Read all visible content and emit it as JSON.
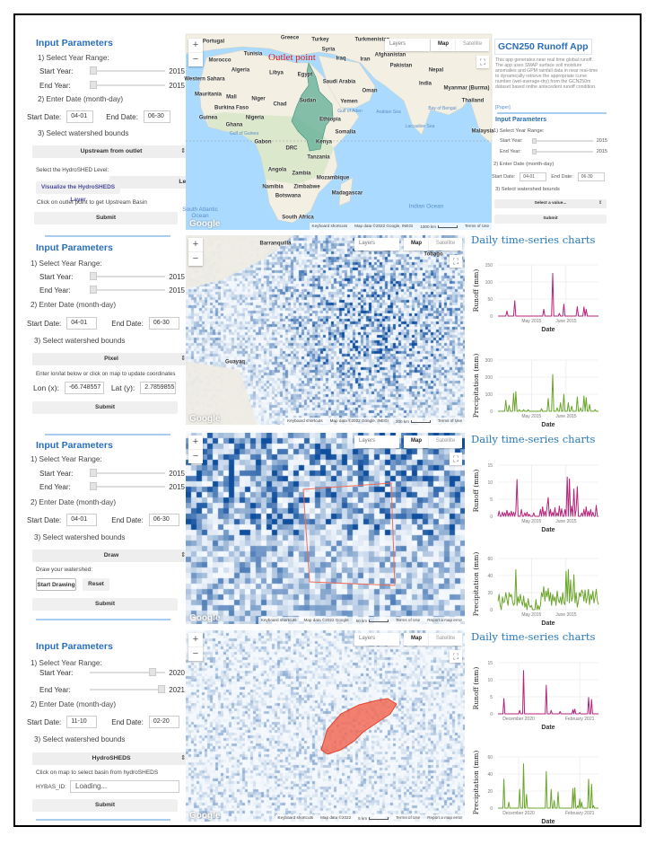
{
  "common": {
    "input_parameters": "Input Parameters",
    "year_range": "1) Select Year Range:",
    "start_year": "Start Year:",
    "end_year": "End Year:",
    "enter_date": "2) Enter Date (month-day)",
    "start_date": "Start Date:",
    "end_date": "End Date:",
    "watershed": "3) Select watershed bounds",
    "submit": "Submit",
    "charts_title": "Daily time-series charts",
    "date_label": "Date",
    "runoff_label": "Runoff (mm)",
    "precip_label": "Precipitation (mm)"
  },
  "map_controls": {
    "zoom_in": "+",
    "zoom_out": "−",
    "layers": "Layers",
    "map": "Map",
    "satellite": "Satellite",
    "fullscreen": "⛶",
    "google": "Google",
    "shortcuts": "Keyboard shortcuts",
    "terms": "Terms of Use",
    "report": "Report a map error"
  },
  "panel1": {
    "start_year": "2015",
    "end_year": "2015",
    "start_date": "04-01",
    "end_date": "06-30",
    "bounds": "Upstream from outlet",
    "level_label": "Select the HydroSHED Level:",
    "level": "Level8",
    "visualize": "Visualize the HydroSHEDS Layer",
    "hint": "Click on outlet point to get Upstream Basin",
    "map_data": "Map data ©2022 Google, INEGI",
    "scale": "1000 km",
    "outlet_label": "Outlet point",
    "labels": [
      "Portugal",
      "Greece",
      "Turkey",
      "Turkmenistan",
      "Morocco",
      "Tunisia",
      "Syria",
      "Iraq",
      "Iran",
      "Afghanistan",
      "Pakistan",
      "Algeria",
      "Libya",
      "Egypt",
      "Nepal",
      "Western Sahara",
      "Saudi Arabia",
      "India",
      "Oman",
      "Myanmar (Burma)",
      "Mauritania",
      "Mali",
      "Niger",
      "Chad",
      "Sudan",
      "Yemen",
      "Thailand",
      "Burkina Faso",
      "Guinea",
      "Nigeria",
      "Ethiopia",
      "Ghana",
      "Somalia",
      "Gabon",
      "Kenya",
      "DRC",
      "Tanzania",
      "Angola",
      "Zambia",
      "Mozambique",
      "Namibia",
      "Zimbabwe",
      "Botswana",
      "Madagascar",
      "South Africa",
      "Malaysia"
    ],
    "water_labels": [
      "Gulf of Guinea",
      "Gulf of Aden",
      "Arabian Sea",
      "Bay of Bengal",
      "Laccadive Sea",
      "Indian Ocean",
      "South Atlantic Ocean"
    ]
  },
  "app": {
    "title": "GCN250 Runoff App",
    "description": "This app generates near real time global runoff. The app uses SMAP surface soil moisture anomalies and GPM rainfall data in near real-time to dynamically retrieve the appropriate curve number (wet-average-dry) from the GCN250m dataset based onthe antecedent runoff condition.",
    "paper_link": "[Paper]",
    "start_year": "2015",
    "end_year": "2015",
    "start_date": "04-01",
    "end_date": "06-30",
    "bounds": "Select a value..."
  },
  "panel2": {
    "start_year": "2015",
    "end_year": "2015",
    "start_date": "04-01",
    "end_date": "06-30",
    "bounds": "Pixel",
    "hint": "Enter lon/lat below or click on map to update coordinates",
    "lon_label": "Lon (x):",
    "lon": "-66.748557",
    "lat_label": "Lat (y):",
    "lat": "2.7859855",
    "map_data": "Map data ©2022 Google, INEGI",
    "scale": "200 km",
    "labels": [
      "Barranquilla",
      "Guayaq",
      "Tobago"
    ]
  },
  "panel3": {
    "start_year": "2015",
    "end_year": "2015",
    "start_date": "04-01",
    "end_date": "06-30",
    "bounds": "Draw",
    "draw_label": "Draw your watershed:",
    "start_drawing": "Start Drawing",
    "reset": "Reset",
    "map_data": "Map data ©2022 Google",
    "scale": "50 km"
  },
  "panel4": {
    "start_year": "2020",
    "end_year": "2021",
    "start_date": "11-10",
    "end_date": "02-20",
    "bounds": "HydroSHEDS",
    "hint": "Click on map to select basin from hydroSHEDS",
    "hybas_label": "HYBAS_ID:",
    "hybas_placeholder": "Loading...",
    "map_data": "Map data ©2022",
    "scale": "5 km"
  },
  "colors": {
    "accent": "#2a6ebb",
    "runoff": "#b5247a",
    "precip": "#6aa52a",
    "basin": "#5fae95",
    "drawn": "#f26b57"
  },
  "chart_data": [
    {
      "type": "line",
      "panel": 2,
      "ylabel": "Runoff (mm)",
      "xlabel": "Date",
      "start": "2015-04-01",
      "end": "2015-06-30",
      "ylim": [
        0,
        150
      ],
      "yticks": [
        0,
        50,
        100,
        150
      ],
      "xticks": [
        {
          "date": "2015-05-01",
          "label": "May 2015"
        },
        {
          "date": "2015-06-01",
          "label": "June 2015"
        }
      ],
      "grid": true,
      "points": [
        [
          "2015-04-09",
          15
        ],
        [
          "2015-04-16",
          45
        ],
        [
          "2015-05-12",
          20
        ],
        [
          "2015-05-20",
          125
        ],
        [
          "2015-05-26",
          8
        ],
        [
          "2015-05-30",
          35
        ],
        [
          "2015-06-11",
          28
        ],
        [
          "2015-06-17",
          27
        ],
        [
          "2015-06-19",
          20
        ]
      ]
    },
    {
      "type": "line",
      "panel": 2,
      "ylabel": "Precipitation (mm)",
      "xlabel": "Date",
      "start": "2015-04-01",
      "end": "2015-06-30",
      "ylim": [
        0,
        300
      ],
      "yticks": [
        0,
        100,
        200,
        300
      ],
      "xticks": [
        {
          "date": "2015-05-01",
          "label": "May 2015"
        },
        {
          "date": "2015-06-01",
          "label": "June 2015"
        }
      ],
      "grid": true,
      "points": [
        [
          "2015-04-08",
          65
        ],
        [
          "2015-04-11",
          35
        ],
        [
          "2015-04-15",
          105
        ],
        [
          "2015-04-17",
          115
        ],
        [
          "2015-04-20",
          10
        ],
        [
          "2015-04-24",
          10
        ],
        [
          "2015-04-28",
          10
        ],
        [
          "2015-05-10",
          15
        ],
        [
          "2015-05-16",
          75
        ],
        [
          "2015-05-20",
          215
        ],
        [
          "2015-05-24",
          20
        ],
        [
          "2015-05-27",
          50
        ],
        [
          "2015-05-30",
          100
        ],
        [
          "2015-06-03",
          50
        ],
        [
          "2015-06-06",
          30
        ],
        [
          "2015-06-11",
          85
        ],
        [
          "2015-06-14",
          20
        ],
        [
          "2015-06-17",
          90
        ],
        [
          "2015-06-19",
          80
        ],
        [
          "2015-06-22",
          40
        ],
        [
          "2015-06-27",
          10
        ]
      ]
    },
    {
      "type": "line",
      "panel": 3,
      "ylabel": "Runoff (mm)",
      "xlabel": "Date",
      "start": "2015-04-01",
      "end": "2015-06-30",
      "ylim": [
        0,
        15
      ],
      "yticks": [
        0,
        5,
        10,
        15
      ],
      "xticks": [
        {
          "date": "2015-05-01",
          "label": "May 2015"
        },
        {
          "date": "2015-06-01",
          "label": "June 2015"
        }
      ],
      "grid": true,
      "points": [
        [
          "2015-04-02",
          1.5
        ],
        [
          "2015-04-05",
          1.2
        ],
        [
          "2015-04-07",
          1
        ],
        [
          "2015-04-09",
          1.8
        ],
        [
          "2015-04-11",
          1
        ],
        [
          "2015-04-13",
          1.5
        ],
        [
          "2015-04-15",
          1.2
        ],
        [
          "2015-04-17",
          1.5
        ],
        [
          "2015-04-18",
          10.8
        ],
        [
          "2015-04-22",
          2
        ],
        [
          "2015-04-25",
          1
        ],
        [
          "2015-04-27",
          1.2
        ],
        [
          "2015-04-29",
          0.6
        ],
        [
          "2015-05-03",
          1
        ],
        [
          "2015-05-09",
          2
        ],
        [
          "2015-05-11",
          2.8
        ],
        [
          "2015-05-13",
          1.5
        ],
        [
          "2015-05-15",
          3
        ],
        [
          "2015-05-16",
          5.5
        ],
        [
          "2015-05-18",
          2
        ],
        [
          "2015-05-20",
          1.2
        ],
        [
          "2015-05-22",
          2.5
        ],
        [
          "2015-05-24",
          1
        ],
        [
          "2015-05-26",
          3
        ],
        [
          "2015-05-28",
          2.2
        ],
        [
          "2015-05-31",
          2
        ],
        [
          "2015-06-02",
          11.5
        ],
        [
          "2015-06-04",
          11
        ],
        [
          "2015-06-06",
          3
        ],
        [
          "2015-06-08",
          8
        ],
        [
          "2015-06-10",
          2
        ],
        [
          "2015-06-11",
          8.7
        ],
        [
          "2015-06-15",
          1
        ],
        [
          "2015-06-17",
          2
        ],
        [
          "2015-06-19",
          2.8
        ],
        [
          "2015-06-21",
          1.5
        ],
        [
          "2015-06-23",
          2
        ],
        [
          "2015-06-25",
          1.2
        ],
        [
          "2015-06-28",
          3.2
        ]
      ]
    },
    {
      "type": "line",
      "panel": 3,
      "ylabel": "Precipitation (mm)",
      "xlabel": "Date",
      "start": "2015-04-01",
      "end": "2015-06-30",
      "ylim": [
        0,
        60
      ],
      "yticks": [
        0,
        20,
        40,
        60
      ],
      "xticks": [
        {
          "date": "2015-05-01",
          "label": "May 2015"
        },
        {
          "date": "2015-06-01",
          "label": "June 2015"
        }
      ],
      "grid": true,
      "points": [
        [
          "2015-04-01",
          10
        ],
        [
          "2015-04-02",
          18
        ],
        [
          "2015-04-03",
          5
        ],
        [
          "2015-04-05",
          15
        ],
        [
          "2015-04-06",
          8
        ],
        [
          "2015-04-07",
          10
        ],
        [
          "2015-04-08",
          20
        ],
        [
          "2015-04-09",
          12
        ],
        [
          "2015-04-10",
          5
        ],
        [
          "2015-04-11",
          20
        ],
        [
          "2015-04-12",
          15
        ],
        [
          "2015-04-13",
          18
        ],
        [
          "2015-04-14",
          10
        ],
        [
          "2015-04-15",
          5
        ],
        [
          "2015-04-16",
          8
        ],
        [
          "2015-04-17",
          47
        ],
        [
          "2015-04-18",
          5
        ],
        [
          "2015-04-19",
          15
        ],
        [
          "2015-04-20",
          8
        ],
        [
          "2015-04-21",
          18
        ],
        [
          "2015-04-22",
          10
        ],
        [
          "2015-04-23",
          5
        ],
        [
          "2015-04-24",
          16
        ],
        [
          "2015-04-25",
          3
        ],
        [
          "2015-04-26",
          8
        ],
        [
          "2015-04-28",
          13
        ],
        [
          "2015-04-29",
          5
        ],
        [
          "2015-04-30",
          3
        ],
        [
          "2015-05-01",
          5
        ],
        [
          "2015-05-05",
          12
        ],
        [
          "2015-05-07",
          5
        ],
        [
          "2015-05-09",
          5
        ],
        [
          "2015-05-10",
          20
        ],
        [
          "2015-05-11",
          15
        ],
        [
          "2015-05-12",
          27
        ],
        [
          "2015-05-13",
          10
        ],
        [
          "2015-05-14",
          22
        ],
        [
          "2015-05-15",
          15
        ],
        [
          "2015-05-16",
          25
        ],
        [
          "2015-05-17",
          10
        ],
        [
          "2015-05-18",
          20
        ],
        [
          "2015-05-19",
          5
        ],
        [
          "2015-05-20",
          18
        ],
        [
          "2015-05-21",
          10
        ],
        [
          "2015-05-22",
          15
        ],
        [
          "2015-05-23",
          5
        ],
        [
          "2015-05-24",
          22
        ],
        [
          "2015-05-25",
          12
        ],
        [
          "2015-05-26",
          8
        ],
        [
          "2015-05-27",
          15
        ],
        [
          "2015-05-28",
          6
        ],
        [
          "2015-05-29",
          20
        ],
        [
          "2015-05-30",
          8
        ],
        [
          "2015-05-31",
          6
        ],
        [
          "2015-06-01",
          45
        ],
        [
          "2015-06-02",
          10
        ],
        [
          "2015-06-03",
          47
        ],
        [
          "2015-06-04",
          8
        ],
        [
          "2015-06-05",
          35
        ],
        [
          "2015-06-06",
          10
        ],
        [
          "2015-06-07",
          15
        ],
        [
          "2015-06-08",
          41
        ],
        [
          "2015-06-09",
          8
        ],
        [
          "2015-06-10",
          20
        ],
        [
          "2015-06-11",
          3
        ],
        [
          "2015-06-12",
          10
        ],
        [
          "2015-06-13",
          20
        ],
        [
          "2015-06-14",
          15
        ],
        [
          "2015-06-15",
          23
        ],
        [
          "2015-06-16",
          20
        ],
        [
          "2015-06-17",
          10
        ],
        [
          "2015-06-18",
          23
        ],
        [
          "2015-06-19",
          8
        ],
        [
          "2015-06-20",
          15
        ],
        [
          "2015-06-21",
          24
        ],
        [
          "2015-06-22",
          6
        ],
        [
          "2015-06-23",
          18
        ],
        [
          "2015-06-24",
          12
        ],
        [
          "2015-06-25",
          22
        ],
        [
          "2015-06-26",
          8
        ],
        [
          "2015-06-27",
          15
        ],
        [
          "2015-06-28",
          24
        ],
        [
          "2015-06-29",
          10
        ],
        [
          "2015-06-30",
          6
        ]
      ]
    },
    {
      "type": "line",
      "panel": 4,
      "ylabel": "Runoff (mm)",
      "xlabel": "Date",
      "start": "2020-11-10",
      "end": "2021-02-20",
      "ylim": [
        0,
        15
      ],
      "yticks": [
        0,
        5,
        10,
        15
      ],
      "xticks": [
        {
          "date": "2020-12-01",
          "label": "December 2020"
        },
        {
          "date": "2021-02-01",
          "label": "February 2021"
        }
      ],
      "grid": true,
      "points": [
        [
          "2020-11-16",
          4.5
        ],
        [
          "2020-12-02",
          1
        ],
        [
          "2020-12-06",
          12.7
        ],
        [
          "2020-12-29",
          8.4
        ],
        [
          "2021-01-03",
          1
        ],
        [
          "2021-01-12",
          0.7
        ],
        [
          "2021-01-25",
          1.2
        ],
        [
          "2021-01-27",
          1.4
        ],
        [
          "2021-02-01",
          0.4
        ],
        [
          "2021-02-10",
          4.8
        ],
        [
          "2021-02-13",
          4.2
        ]
      ]
    },
    {
      "type": "line",
      "panel": 4,
      "ylabel": "Precipitation (mm)",
      "xlabel": "Date",
      "start": "2020-11-10",
      "end": "2021-02-20",
      "ylim": [
        0,
        60
      ],
      "yticks": [
        0,
        20,
        40,
        60
      ],
      "xticks": [
        {
          "date": "2020-12-01",
          "label": "December 2020"
        },
        {
          "date": "2021-02-01",
          "label": "February 2021"
        }
      ],
      "grid": true,
      "points": [
        [
          "2020-11-16",
          34
        ],
        [
          "2020-11-21",
          7
        ],
        [
          "2020-12-02",
          22
        ],
        [
          "2020-12-06",
          52
        ],
        [
          "2020-12-09",
          16
        ],
        [
          "2020-12-29",
          43
        ],
        [
          "2021-01-03",
          22
        ],
        [
          "2021-01-06",
          9
        ],
        [
          "2021-01-10",
          19
        ],
        [
          "2021-01-25",
          23
        ],
        [
          "2021-01-27",
          24
        ],
        [
          "2021-01-30",
          3
        ],
        [
          "2021-02-01",
          11
        ],
        [
          "2021-02-03",
          7
        ],
        [
          "2021-02-10",
          34
        ],
        [
          "2021-02-13",
          28
        ],
        [
          "2021-02-15",
          3
        ]
      ]
    }
  ]
}
